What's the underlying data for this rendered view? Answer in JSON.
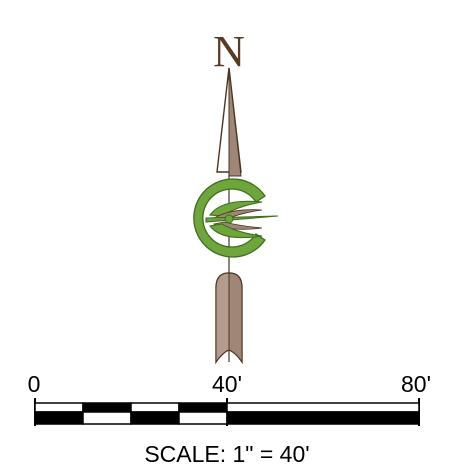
{
  "north_arrow": {
    "letter": "N",
    "colors": {
      "arrow_fill": "#a08676",
      "arrow_stroke": "#4e3520",
      "emblem_green": "#6ea63c",
      "emblem_dark_green": "#3e6e1e",
      "letter": "#5a3a22"
    }
  },
  "scale_bar": {
    "tick_labels": [
      "0",
      "40'",
      "80'"
    ],
    "caption": "SCALE: 1\" = 40'",
    "colors": {
      "dark": "#000000",
      "light": "#ffffff"
    }
  }
}
